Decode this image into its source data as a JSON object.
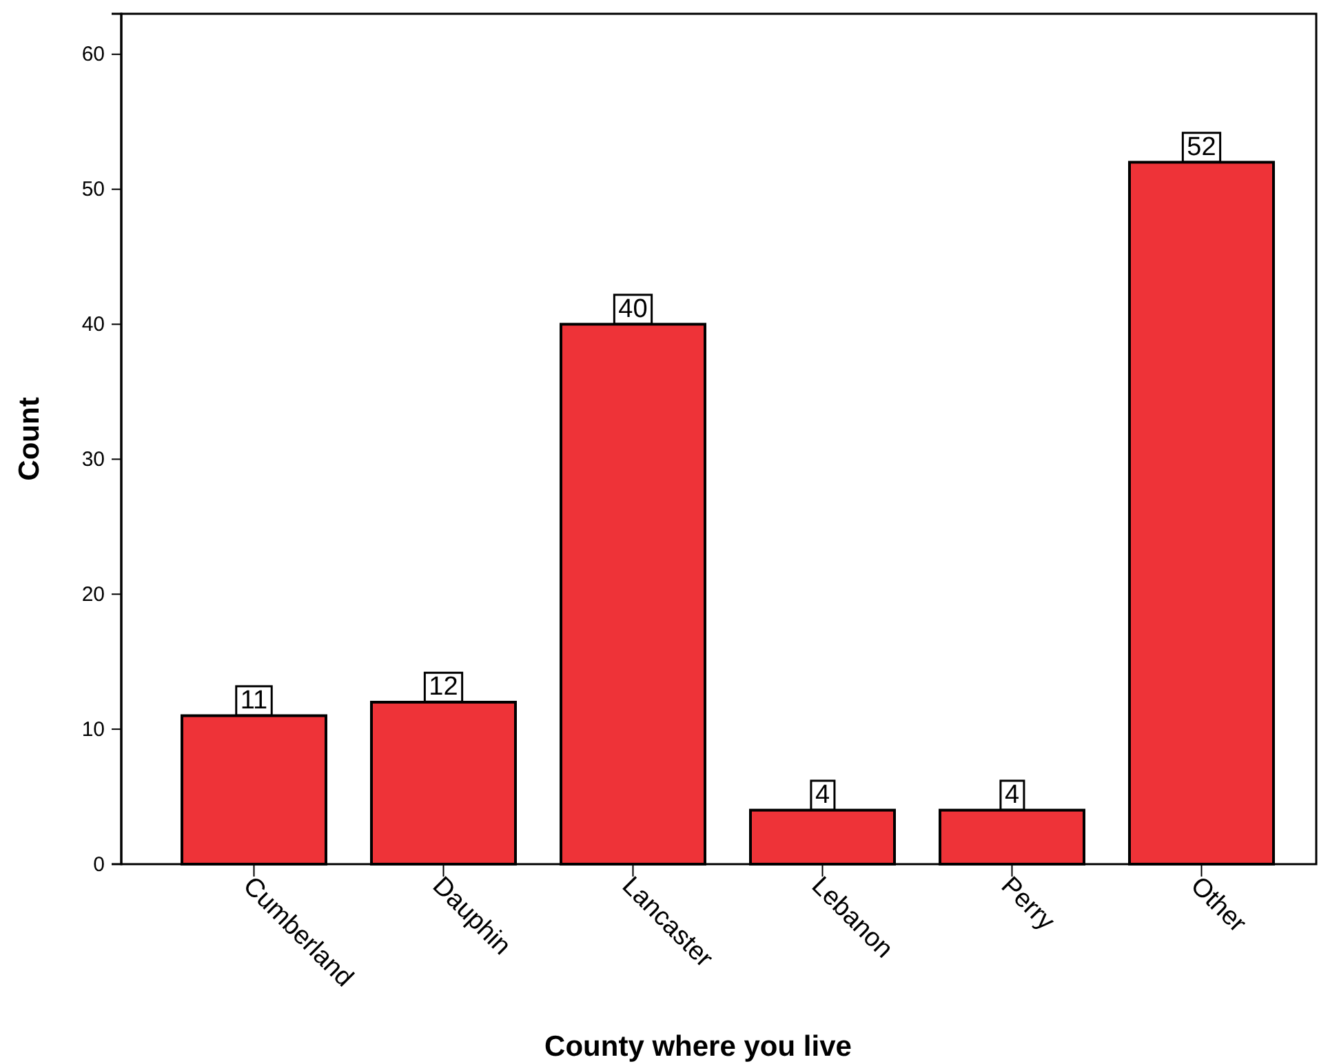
{
  "chart_data": {
    "type": "bar",
    "xlabel": "County where you live",
    "ylabel": "Count",
    "categories": [
      "Cumberland",
      "Dauphin",
      "Lancaster",
      "Lebanon",
      "Perry",
      "Other"
    ],
    "values": [
      11,
      12,
      40,
      4,
      4,
      52
    ],
    "color": "#ee3338",
    "ylim": [
      0,
      63
    ],
    "yticks": [
      0,
      10,
      20,
      30,
      40,
      50,
      60
    ],
    "grid": false,
    "data_labels": true
  }
}
